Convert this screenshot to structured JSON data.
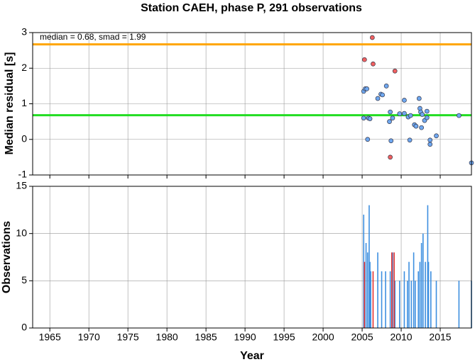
{
  "chart_data": [
    {
      "type": "scatter",
      "title": "Station CAEH, phase P, 291 observations",
      "y_label": "Median residual [s]",
      "annotation": "median = 0.68, smad = 1.99",
      "xlim": [
        1962.8,
        2019
      ],
      "ylim": [
        -1,
        3
      ],
      "yticks": [
        3,
        2,
        1,
        0,
        -1
      ],
      "grid": true,
      "hlines": [
        {
          "value": 0.68,
          "color": "#22dd22"
        },
        {
          "value": 2.67,
          "color": "#ffa500"
        }
      ],
      "series": [
        {
          "color": "#6fa8f0",
          "x": [
            2005.2,
            2005.4,
            2005.6,
            2005.2,
            2005.8,
            2006.0,
            2005.7,
            2007.0,
            2007.4,
            2007.6,
            2008.1,
            2008.6,
            2008.5,
            2008.9,
            2008.7,
            2009.8,
            2010.4,
            2010.4,
            2010.9,
            2011.2,
            2011.1,
            2011.7,
            2011.9,
            2012.3,
            2012.4,
            2012.5,
            2012.7,
            2012.6,
            2013.0,
            2013.3,
            2013.3,
            2013.7,
            2013.7,
            2014.5,
            2017.4,
            2019.0
          ],
          "values": [
            1.35,
            1.42,
            1.42,
            0.6,
            0.6,
            0.58,
            0.0,
            1.15,
            1.27,
            1.25,
            1.5,
            0.77,
            0.5,
            0.6,
            -0.04,
            0.72,
            0.73,
            1.1,
            0.63,
            0.67,
            -0.02,
            0.41,
            0.37,
            1.15,
            0.87,
            0.77,
            0.7,
            0.33,
            0.53,
            0.79,
            0.61,
            -0.02,
            -0.14,
            0.1,
            0.67,
            -0.66
          ]
        },
        {
          "color": "#f06060",
          "x": [
            2005.3,
            2006.3,
            2006.4,
            2009.2,
            2008.6
          ],
          "values": [
            2.24,
            2.86,
            2.12,
            1.92,
            -0.5
          ]
        }
      ]
    },
    {
      "type": "spikes",
      "y_label": "Observations",
      "x_label": "Year",
      "xlim": [
        1962.8,
        2019
      ],
      "ylim": [
        0,
        15
      ],
      "yticks": [
        15,
        10,
        5,
        0
      ],
      "xticks": [
        1965,
        1970,
        1975,
        1980,
        1985,
        1990,
        1995,
        2000,
        2005,
        2010,
        2015
      ],
      "grid": true,
      "series": [
        {
          "color": "#3d8fe0",
          "x": [
            2005.2,
            2005.5,
            2005.7,
            2005.9,
            2006.0,
            2006.1,
            2007.0,
            2007.5,
            2008.0,
            2008.6,
            2008.9,
            2009.2,
            2009.8,
            2010.4,
            2010.8,
            2011.0,
            2011.3,
            2011.6,
            2011.8,
            2012.2,
            2012.4,
            2012.6,
            2012.8,
            2013.1,
            2013.4,
            2013.5,
            2013.8,
            2014.5,
            2017.4,
            2019.0
          ],
          "values": [
            12,
            9,
            8,
            13,
            7,
            6,
            8,
            6,
            6,
            6,
            8,
            5,
            5,
            6,
            5,
            7,
            5,
            8,
            5,
            6,
            7,
            9,
            10,
            7,
            13,
            7,
            6,
            5,
            5,
            5
          ]
        },
        {
          "color": "#e03030",
          "x": [
            2005.3,
            2006.4,
            2008.8,
            2009.1
          ],
          "values": [
            7,
            6,
            8,
            8
          ]
        }
      ]
    }
  ]
}
